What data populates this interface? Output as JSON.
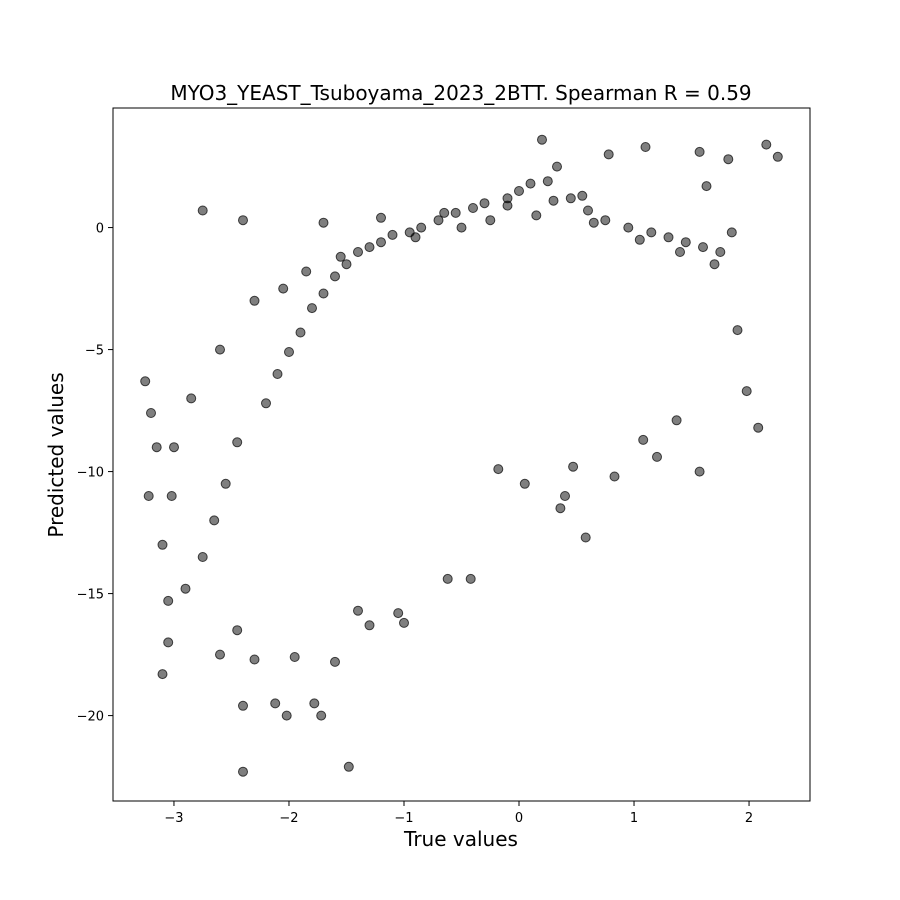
{
  "chart_data": {
    "type": "scatter",
    "title": "MYO3_YEAST_Tsuboyama_2023_2BTT. Spearman R = 0.59",
    "xlabel": "True values",
    "ylabel": "Predicted values",
    "xlim": [
      -3.53,
      2.53
    ],
    "ylim": [
      -23.5,
      4.9
    ],
    "xticks": [
      -3,
      -2,
      -1,
      0,
      1,
      2
    ],
    "yticks": [
      -20,
      -15,
      -10,
      -5,
      0
    ],
    "xtick_labels": [
      "−3",
      "−2",
      "−1",
      "0",
      "1",
      "2"
    ],
    "ytick_labels": [
      "−20",
      "−15",
      "−10",
      "−5",
      "0"
    ],
    "grid": false,
    "marker_color": "#000000",
    "marker_alpha": 0.5,
    "points": {
      "x": [
        -2.4,
        -1.48,
        -2.4,
        -2.02,
        -1.78,
        -1.72,
        -2.12,
        -3.1,
        -3.05,
        -2.6,
        -2.45,
        -2.3,
        -1.95,
        -1.6,
        -1.4,
        -1.3,
        -1.05,
        -1.0,
        -0.62,
        -0.42,
        0.2,
        0.33,
        0.78,
        1.1,
        1.57,
        2.15,
        2.25,
        1.82,
        1.63,
        1.9,
        1.98,
        2.08,
        1.37,
        1.2,
        1.08,
        1.57,
        0.83,
        0.58,
        0.4,
        0.36,
        0.47,
        0.05,
        -0.18,
        -3.25,
        -3.2,
        -3.15,
        -3.02,
        -3.1,
        -3.05,
        -2.9,
        -2.75,
        -2.65,
        -2.55,
        -2.45,
        -2.2,
        -2.1,
        -2.0,
        -1.9,
        -1.8,
        -1.7,
        -1.6,
        -1.5,
        -1.4,
        -1.2,
        -1.1,
        -0.95,
        -0.85,
        -0.7,
        -0.55,
        -0.4,
        -0.3,
        -0.1,
        0.0,
        0.1,
        0.25,
        0.45,
        0.6,
        0.75,
        0.95,
        1.15,
        1.3,
        1.45,
        1.6,
        1.75,
        1.85,
        -2.75,
        -2.4,
        -1.7,
        -1.2,
        -0.65,
        -0.1,
        0.3,
        0.55,
        -3.22,
        -3.0,
        -2.85,
        -2.6,
        -2.3,
        -2.05,
        -1.85,
        -1.55,
        -1.3,
        -0.9,
        -0.5,
        -0.25,
        0.15,
        0.65,
        1.05,
        1.4,
        1.7
      ],
      "y": [
        -22.3,
        -22.1,
        -19.6,
        -20.0,
        -19.5,
        -20.0,
        -19.5,
        -18.3,
        -17.0,
        -17.5,
        -16.5,
        -17.7,
        -17.6,
        -17.8,
        -15.7,
        -16.3,
        -15.8,
        -16.2,
        -14.4,
        -14.4,
        3.6,
        2.5,
        3.0,
        3.3,
        3.1,
        3.4,
        2.9,
        2.8,
        1.7,
        -4.2,
        -6.7,
        -8.2,
        -7.9,
        -9.4,
        -8.7,
        -10.0,
        -10.2,
        -12.7,
        -11.0,
        -11.5,
        -9.8,
        -10.5,
        -9.9,
        -6.3,
        -7.6,
        -9.0,
        -11.0,
        -13.0,
        -15.3,
        -14.8,
        -13.5,
        -12.0,
        -10.5,
        -8.8,
        -7.2,
        -6.0,
        -5.1,
        -4.3,
        -3.3,
        -2.7,
        -2.0,
        -1.5,
        -1.0,
        -0.6,
        -0.3,
        -0.2,
        0.0,
        0.3,
        0.6,
        0.8,
        1.0,
        1.2,
        1.5,
        1.8,
        1.9,
        1.2,
        0.7,
        0.3,
        0.0,
        -0.2,
        -0.4,
        -0.6,
        -0.8,
        -1.0,
        -0.2,
        0.7,
        0.3,
        0.2,
        0.4,
        0.6,
        0.9,
        1.1,
        1.3,
        -11.0,
        -9.0,
        -7.0,
        -5.0,
        -3.0,
        -2.5,
        -1.8,
        -1.2,
        -0.8,
        -0.4,
        0.0,
        0.3,
        0.5,
        0.2,
        -0.5,
        -1.0,
        -1.5
      ]
    }
  }
}
